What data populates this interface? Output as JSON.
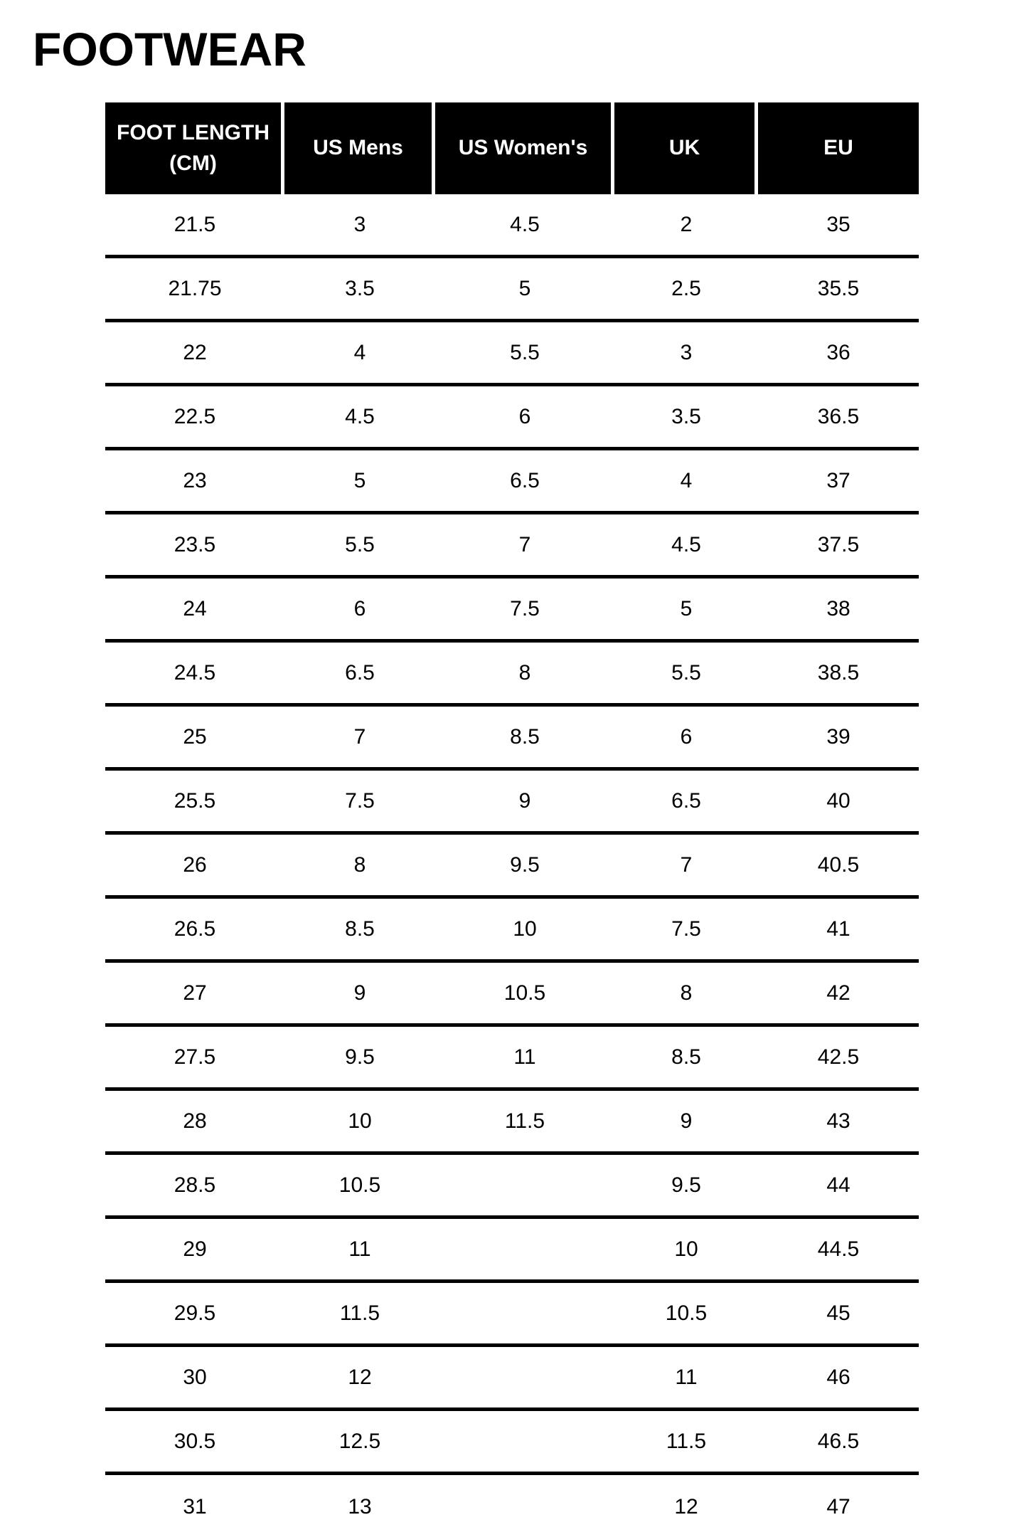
{
  "title": "FOOTWEAR",
  "colors": {
    "background": "#ffffff",
    "header_bg": "#000000",
    "header_text": "#ffffff",
    "body_text": "#000000",
    "row_separator": "#000000"
  },
  "table": {
    "columns": [
      "FOOT LENGTH (CM)",
      "US Mens",
      "US Women's",
      "UK",
      "EU"
    ],
    "rows": [
      [
        "21.5",
        "3",
        "4.5",
        "2",
        "35"
      ],
      [
        "21.75",
        "3.5",
        "5",
        "2.5",
        "35.5"
      ],
      [
        "22",
        "4",
        "5.5",
        "3",
        "36"
      ],
      [
        "22.5",
        "4.5",
        "6",
        "3.5",
        "36.5"
      ],
      [
        "23",
        "5",
        "6.5",
        "4",
        "37"
      ],
      [
        "23.5",
        "5.5",
        "7",
        "4.5",
        "37.5"
      ],
      [
        "24",
        "6",
        "7.5",
        "5",
        "38"
      ],
      [
        "24.5",
        "6.5",
        "8",
        "5.5",
        "38.5"
      ],
      [
        "25",
        "7",
        "8.5",
        "6",
        "39"
      ],
      [
        "25.5",
        "7.5",
        "9",
        "6.5",
        "40"
      ],
      [
        "26",
        "8",
        "9.5",
        "7",
        "40.5"
      ],
      [
        "26.5",
        "8.5",
        "10",
        "7.5",
        "41"
      ],
      [
        "27",
        "9",
        "10.5",
        "8",
        "42"
      ],
      [
        "27.5",
        "9.5",
        "11",
        "8.5",
        "42.5"
      ],
      [
        "28",
        "10",
        "11.5",
        "9",
        "43"
      ],
      [
        "28.5",
        "10.5",
        "",
        "9.5",
        "44"
      ],
      [
        "29",
        "11",
        "",
        "10",
        "44.5"
      ],
      [
        "29.5",
        "11.5",
        "",
        "10.5",
        "45"
      ],
      [
        "30",
        "12",
        "",
        "11",
        "46"
      ],
      [
        "30.5",
        "12.5",
        "",
        "11.5",
        "46.5"
      ],
      [
        "31",
        "13",
        "",
        "12",
        "47"
      ]
    ]
  }
}
